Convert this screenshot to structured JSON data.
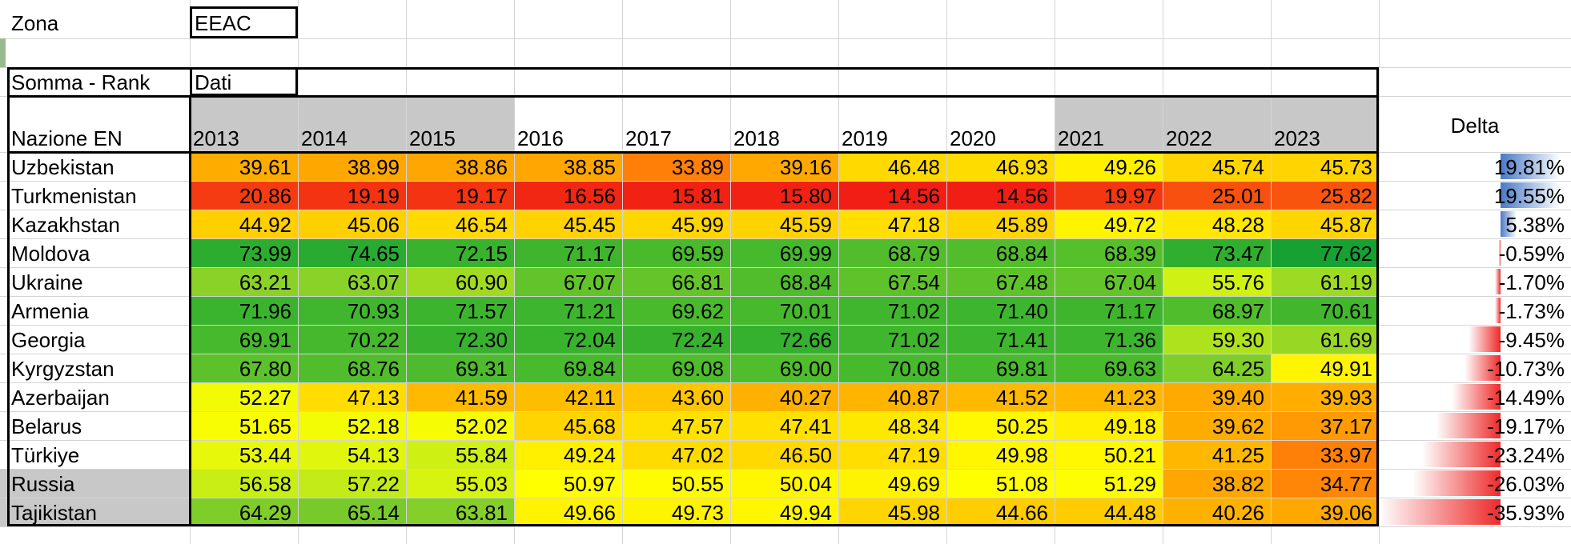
{
  "filter": {
    "label": "Zona",
    "value": "EEAC"
  },
  "pivot": {
    "corner_label": "Somma - Rank",
    "data_label": "Dati",
    "row_header": "Nazione  EN"
  },
  "years": [
    "2013",
    "2014",
    "2015",
    "2016",
    "2017",
    "2018",
    "2019",
    "2020",
    "2021",
    "2022",
    "2023"
  ],
  "delta_header": "Delta",
  "rows": [
    {
      "country": "Uzbekistan",
      "values": [
        "39.61",
        "38.99",
        "38.86",
        "38.85",
        "33.89",
        "39.16",
        "46.48",
        "46.93",
        "49.26",
        "45.74",
        "45.73"
      ],
      "delta": "19.81%",
      "delta_value": 19.81
    },
    {
      "country": "Turkmenistan",
      "values": [
        "20.86",
        "19.19",
        "19.17",
        "16.56",
        "15.81",
        "15.80",
        "14.56",
        "14.56",
        "19.97",
        "25.01",
        "25.82"
      ],
      "delta": "19.55%",
      "delta_value": 19.55
    },
    {
      "country": "Kazakhstan",
      "values": [
        "44.92",
        "45.06",
        "46.54",
        "45.45",
        "45.99",
        "45.59",
        "47.18",
        "45.89",
        "49.72",
        "48.28",
        "45.87"
      ],
      "delta": "5.38%",
      "delta_value": 5.38
    },
    {
      "country": "Moldova",
      "values": [
        "73.99",
        "74.65",
        "72.15",
        "71.17",
        "69.59",
        "69.99",
        "68.79",
        "68.84",
        "68.39",
        "73.47",
        "77.62"
      ],
      "delta": "-0.59%",
      "delta_value": -0.59
    },
    {
      "country": "Ukraine",
      "values": [
        "63.21",
        "63.07",
        "60.90",
        "67.07",
        "66.81",
        "68.84",
        "67.54",
        "67.48",
        "67.04",
        "55.76",
        "61.19"
      ],
      "delta": "-1.70%",
      "delta_value": -1.7
    },
    {
      "country": "Armenia",
      "values": [
        "71.96",
        "70.93",
        "71.57",
        "71.21",
        "69.62",
        "70.01",
        "71.02",
        "71.40",
        "71.17",
        "68.97",
        "70.61"
      ],
      "delta": "-1.73%",
      "delta_value": -1.73
    },
    {
      "country": "Georgia",
      "values": [
        "69.91",
        "70.22",
        "72.30",
        "72.04",
        "72.24",
        "72.66",
        "71.02",
        "71.41",
        "71.36",
        "59.30",
        "61.69"
      ],
      "delta": "-9.45%",
      "delta_value": -9.45
    },
    {
      "country": "Kyrgyzstan",
      "values": [
        "67.80",
        "68.76",
        "69.31",
        "69.84",
        "69.08",
        "69.00",
        "70.08",
        "69.81",
        "69.63",
        "64.25",
        "49.91"
      ],
      "delta": "-10.73%",
      "delta_value": -10.73
    },
    {
      "country": "Azerbaijan",
      "values": [
        "52.27",
        "47.13",
        "41.59",
        "42.11",
        "43.60",
        "40.27",
        "40.87",
        "41.52",
        "41.23",
        "39.40",
        "39.93"
      ],
      "delta": "-14.49%",
      "delta_value": -14.49
    },
    {
      "country": "Belarus",
      "values": [
        "51.65",
        "52.18",
        "52.02",
        "45.68",
        "47.57",
        "47.41",
        "48.34",
        "50.25",
        "49.18",
        "39.62",
        "37.17"
      ],
      "delta": "-19.17%",
      "delta_value": -19.17
    },
    {
      "country": "Türkiye",
      "values": [
        "53.44",
        "54.13",
        "55.84",
        "49.24",
        "47.02",
        "46.50",
        "47.19",
        "49.98",
        "50.21",
        "41.25",
        "33.97"
      ],
      "delta": "-23.24%",
      "delta_value": -23.24
    },
    {
      "country": "Russia",
      "values": [
        "56.58",
        "57.22",
        "55.03",
        "50.97",
        "50.55",
        "50.04",
        "49.69",
        "51.08",
        "51.29",
        "38.82",
        "34.77"
      ],
      "delta": "-26.03%",
      "delta_value": -26.03
    },
    {
      "country": "Tajikistan",
      "values": [
        "64.29",
        "65.14",
        "63.81",
        "49.66",
        "49.73",
        "49.94",
        "45.98",
        "44.66",
        "44.48",
        "40.26",
        "39.06"
      ],
      "delta": "-35.93%",
      "delta_value": -35.93
    }
  ],
  "colors": {
    "header_gray": "#c8c8c8",
    "delta_pos": "#4a79c6",
    "delta_neg": "#ee2a2a"
  }
}
